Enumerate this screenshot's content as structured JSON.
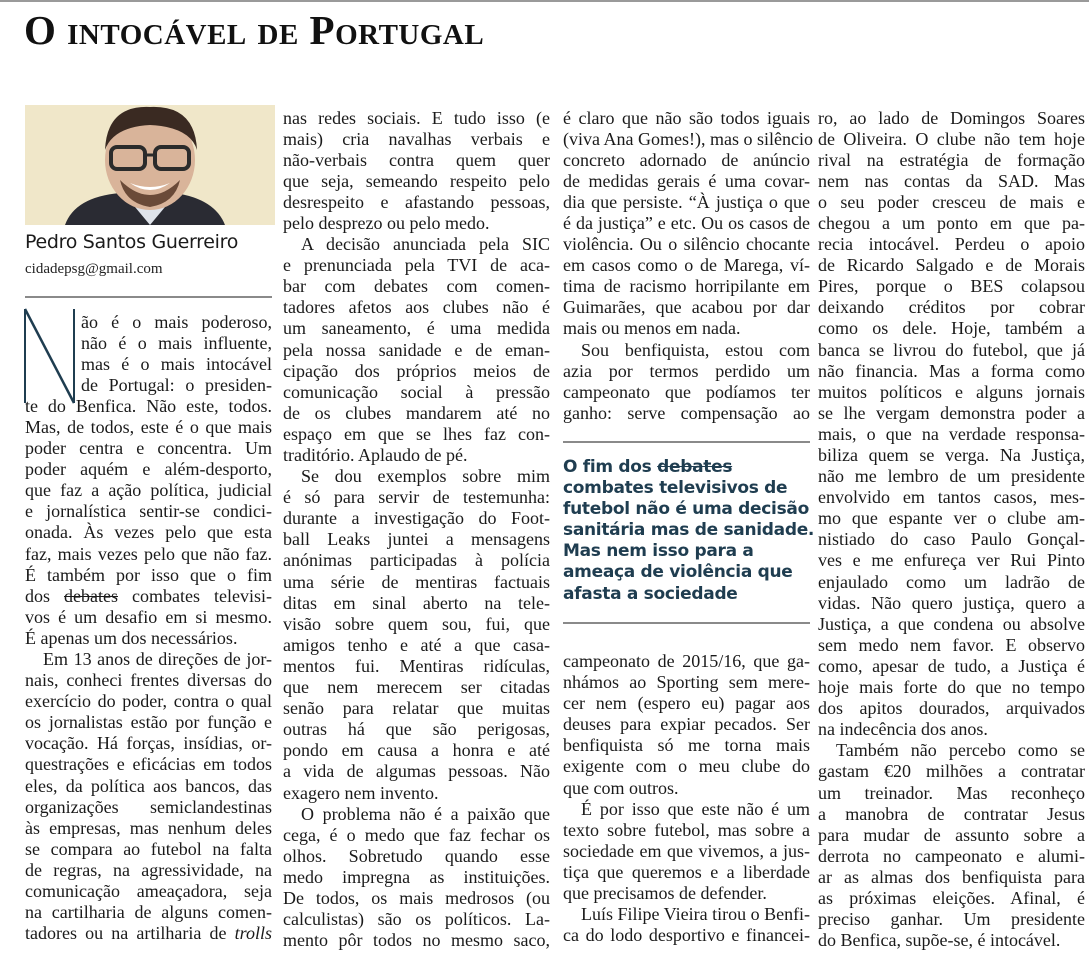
{
  "article": {
    "title": "O intocável de Portugal",
    "author": "Pedro Santos Guerreiro",
    "email": "cidadepsg@gmail.com",
    "drop_cap": "N",
    "accent_color": "#1f3d50"
  },
  "columns": [
    {
      "paragraphs": [
        {
          "lines": [
            "ão é o mais poderoso,",
            "não é o mais influente,",
            "mas é o mais intocável",
            "de Portugal: o presiden-",
            "te do Benfica. Não este, todos.",
            "Mas, de todos, este é o que mais",
            "poder centra e concentra. Um",
            "poder aquém e além-desporto,",
            "que faz a ação política, judicial",
            "e jornalística sentir-se condici-",
            "onada. Às vezes pelo que esta",
            "faz, mais vezes pelo que não faz.",
            "É também por isso que o fim",
            {
              "parts": [
                {
                  "text": "dos "
                },
                {
                  "text": "debates",
                  "style": "strike"
                },
                {
                  "text": " combates televisi-"
                }
              ]
            },
            "vos é um desafio em si mesmo.",
            "É apenas um dos necessários."
          ],
          "drop_cap_lines": 4
        },
        {
          "lines": [
            "Em 13 anos de direções de jor-",
            "nais, conheci frentes diversas do",
            "exercício do poder, contra o qual",
            "os jornalistas estão por função e",
            "vocação. Há forças, insídias, or-",
            "questrações e eficácias em todos",
            "eles, da política aos bancos, das",
            "organizações semiclandestinas",
            "às empresas, mas nenhum deles",
            "se compara ao futebol na falta",
            "de regras, na agressividade, na",
            "comunicação ameaçadora, seja",
            "na cartilharia de alguns comen-",
            {
              "parts": [
                {
                  "text": "tadores ou na artilharia de "
                },
                {
                  "text": "trolls",
                  "style": "italic"
                }
              ]
            }
          ]
        }
      ]
    },
    {
      "paragraphs": [
        {
          "continued": true,
          "lines": [
            "nas redes sociais. E tudo isso (e",
            "mais) cria navalhas verbais e",
            "não-verbais contra quem quer",
            "que seja, semeando respeito pelo",
            "desrespeito e afastando pessoas,",
            "pelo desprezo ou pelo medo."
          ]
        },
        {
          "lines": [
            "A decisão anunciada pela SIC",
            "e prenunciada pela TVI de aca-",
            "bar com debates com comen-",
            "tadores afetos aos clubes não é",
            "um saneamento, é uma medida",
            "pela nossa sanidade e de eman-",
            "cipação dos próprios meios de",
            "comunicação social à pressão",
            "de os clubes mandarem até no",
            "espaço em que se lhes faz con-",
            "traditório. Aplaudo de pé."
          ]
        },
        {
          "lines": [
            "Se dou exemplos sobre mim",
            "é só para servir de testemunha:",
            "durante a investigação do Foot-",
            "ball Leaks juntei a mensagens",
            "anónimas participadas à polícia",
            "uma série de mentiras factuais",
            "ditas em sinal aberto na tele-",
            "visão sobre quem sou, fui, que",
            "amigos tenho e até a que casa-",
            "mentos fui. Mentiras ridículas,",
            "que nem merecem ser citadas",
            "senão para relatar que muitas",
            "outras há que são perigosas,",
            "pondo em causa a honra e até",
            "a vida de algumas pessoas. Não",
            "exagero nem invento."
          ]
        },
        {
          "lines": [
            "O problema não é a paixão que",
            "cega, é o medo que faz fechar os",
            "olhos. Sobretudo quando esse",
            "medo impregna as instituições.",
            "De todos, os mais medrosos (ou",
            "calculistas) são os políticos. La-",
            "mento pôr todos no mesmo saco,"
          ]
        }
      ]
    },
    {
      "paragraphs": [
        {
          "continued": true,
          "lines": [
            "é claro que não são todos iguais",
            "(viva Ana Gomes!), mas o silêncio",
            "concreto adornado de anúncio",
            "de medidas gerais é uma covar-",
            "dia que persiste. “À justiça o que",
            "é da justiça” e etc. Ou os casos de",
            "violência. Ou o silêncio chocante",
            "em casos como o de Marega, ví-",
            "tima de racismo horripilante em",
            "Guimarães, que acabou por dar",
            "mais ou menos em nada."
          ]
        },
        {
          "lines": [
            "Sou benfiquista, estou com",
            "azia por termos perdido um",
            "campeonato que podíamos ter",
            "ganho: serve compensação ao"
          ]
        }
      ],
      "pull_quote": {
        "lines": [
          {
            "parts": [
              {
                "text": "O fim dos "
              },
              {
                "text": "debates",
                "style": "strike"
              }
            ]
          },
          "combates televisivos de",
          "futebol não é uma decisão",
          "sanitária mas de sanidade.",
          "Mas nem isso para a",
          "ameaça de violência que",
          "afasta a sociedade"
        ]
      },
      "paragraphs_after": [
        {
          "continued": true,
          "lines": [
            "campeonato de 2015/16, que ga-",
            "nhámos ao Sporting sem mere-",
            "cer nem (espero eu) pagar aos",
            "deuses para expiar pecados. Ser",
            "benfiquista só me torna mais",
            "exigente com o meu clube do",
            "que com outros."
          ]
        },
        {
          "lines": [
            "É por isso que este não é um",
            "texto sobre futebol, mas sobre a",
            "sociedade em que vivemos, a jus-",
            "tiça que queremos e a liberdade",
            "que precisamos de defender."
          ]
        },
        {
          "lines": [
            "Luís Filipe Vieira tirou o Benfi-",
            "ca do lodo desportivo e financei-"
          ]
        }
      ]
    },
    {
      "paragraphs": [
        {
          "continued": true,
          "lines": [
            "ro, ao lado de Domingos Soares",
            "de Oliveira. O clube não tem hoje",
            "rival na estratégia de formação",
            "nem nas contas da SAD. Mas",
            "o seu poder cresceu de mais e",
            "chegou a um ponto em que pa-",
            "recia intocável. Perdeu o apoio",
            "de Ricardo Salgado e de Morais",
            "Pires, porque o BES colapsou",
            "deixando créditos por cobrar",
            "como os dele. Hoje, também a",
            "banca se livrou do futebol, que já",
            "não financia. Mas a forma como",
            "muitos políticos e alguns jornais",
            "se lhe vergam demonstra poder a",
            "mais, o que na verdade responsa-",
            "biliza quem se verga. Na Justiça,",
            "não me lembro de um presidente",
            "envolvido em tantos casos, mes-",
            "mo que espante ver o clube am-",
            "nistiado do caso Paulo Gonçal-",
            "ves e me enfureça ver Rui Pinto",
            "enjaulado como um ladrão de",
            "vidas. Não quero justiça, quero a",
            "Justiça, a que condena ou absolve",
            "sem medo nem favor. E observo",
            "como, apesar de tudo, a Justiça é",
            "hoje mais forte do que no tempo",
            "dos apitos dourados, arquivados",
            "na indecência dos anos."
          ]
        },
        {
          "lines": [
            "Também não percebo como se",
            "gastam €20 milhões a contratar",
            "um treinador. Mas reconheço",
            "a manobra de contratar Jesus",
            "para mudar de assunto sobre a",
            "derrota no campeonato e alumi-",
            "ar as almas dos benfiquista para",
            "as próximas eleições. Afinal, é",
            "preciso ganhar. Um presidente",
            "do Benfica, supõe-se, é intocável."
          ]
        }
      ]
    }
  ]
}
